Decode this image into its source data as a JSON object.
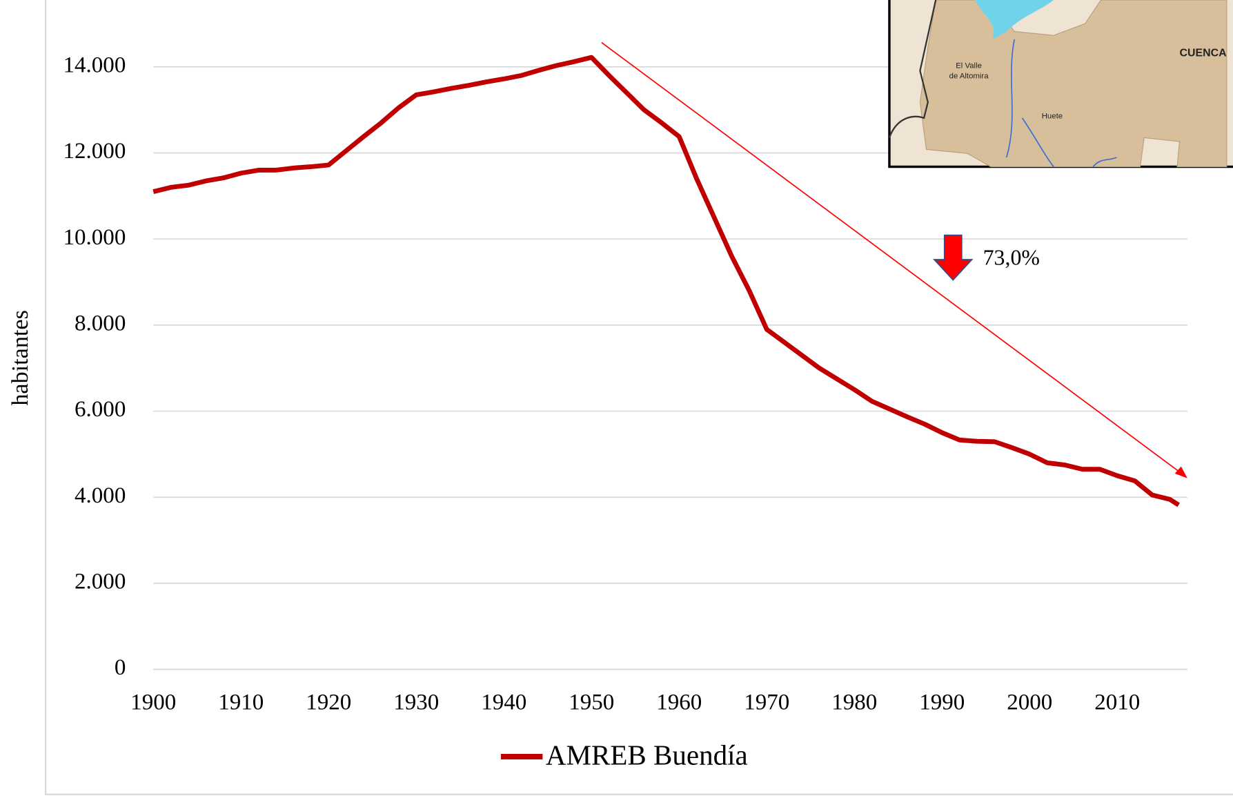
{
  "chart_data": {
    "type": "line",
    "y_label": "habitantes",
    "annotation": "73,0%",
    "x": [
      1900,
      1902,
      1904,
      1906,
      1908,
      1910,
      1912,
      1914,
      1916,
      1918,
      1920,
      1922,
      1924,
      1926,
      1928,
      1930,
      1932,
      1934,
      1936,
      1938,
      1940,
      1942,
      1944,
      1946,
      1948,
      1950,
      1952,
      1954,
      1956,
      1958,
      1960,
      1962,
      1964,
      1966,
      1968,
      1970,
      1972,
      1974,
      1976,
      1978,
      1980,
      1982,
      1984,
      1986,
      1988,
      1990,
      1992,
      1994,
      1996,
      1998,
      2000,
      2002,
      2004,
      2006,
      2008,
      2010,
      2012,
      2014,
      2016,
      2017
    ],
    "series": [
      {
        "name": "AMREB Buendía",
        "color": "#c00000",
        "values": [
          11100,
          11200,
          11250,
          11350,
          11420,
          11530,
          11600,
          11600,
          11650,
          11680,
          11720,
          12050,
          12380,
          12700,
          13050,
          13350,
          13420,
          13500,
          13570,
          13650,
          13720,
          13800,
          13920,
          14030,
          14120,
          14220,
          13800,
          13400,
          13000,
          12700,
          12380,
          11400,
          10500,
          9600,
          8800,
          7900,
          7600,
          7300,
          7000,
          6750,
          6500,
          6230,
          6050,
          5870,
          5700,
          5500,
          5330,
          5300,
          5290,
          5150,
          5000,
          4800,
          4750,
          4650,
          4650,
          4500,
          4380,
          4050,
          3950,
          3820
        ]
      }
    ],
    "xlim": [
      1900,
      2018
    ],
    "xticks": [
      1900,
      1910,
      1920,
      1930,
      1940,
      1950,
      1960,
      1970,
      1980,
      1990,
      2000,
      2010
    ],
    "ylim": [
      0,
      14000
    ],
    "yticks": [
      0,
      {
        "value": 2000,
        "label": "2.000"
      },
      {
        "value": 4000,
        "label": "4.000"
      },
      {
        "value": 6000,
        "label": "6.000"
      },
      {
        "value": 8000,
        "label": "8.000"
      },
      {
        "value": 10000,
        "label": "10.000"
      },
      {
        "value": 12000,
        "label": "12.000"
      },
      {
        "value": 14000,
        "label": "14.000"
      }
    ],
    "grid": true,
    "legend": "bottom"
  },
  "inset_map": {
    "labels": [
      "El Valle",
      "de Altomira",
      "Huete",
      "CUENCA"
    ]
  }
}
